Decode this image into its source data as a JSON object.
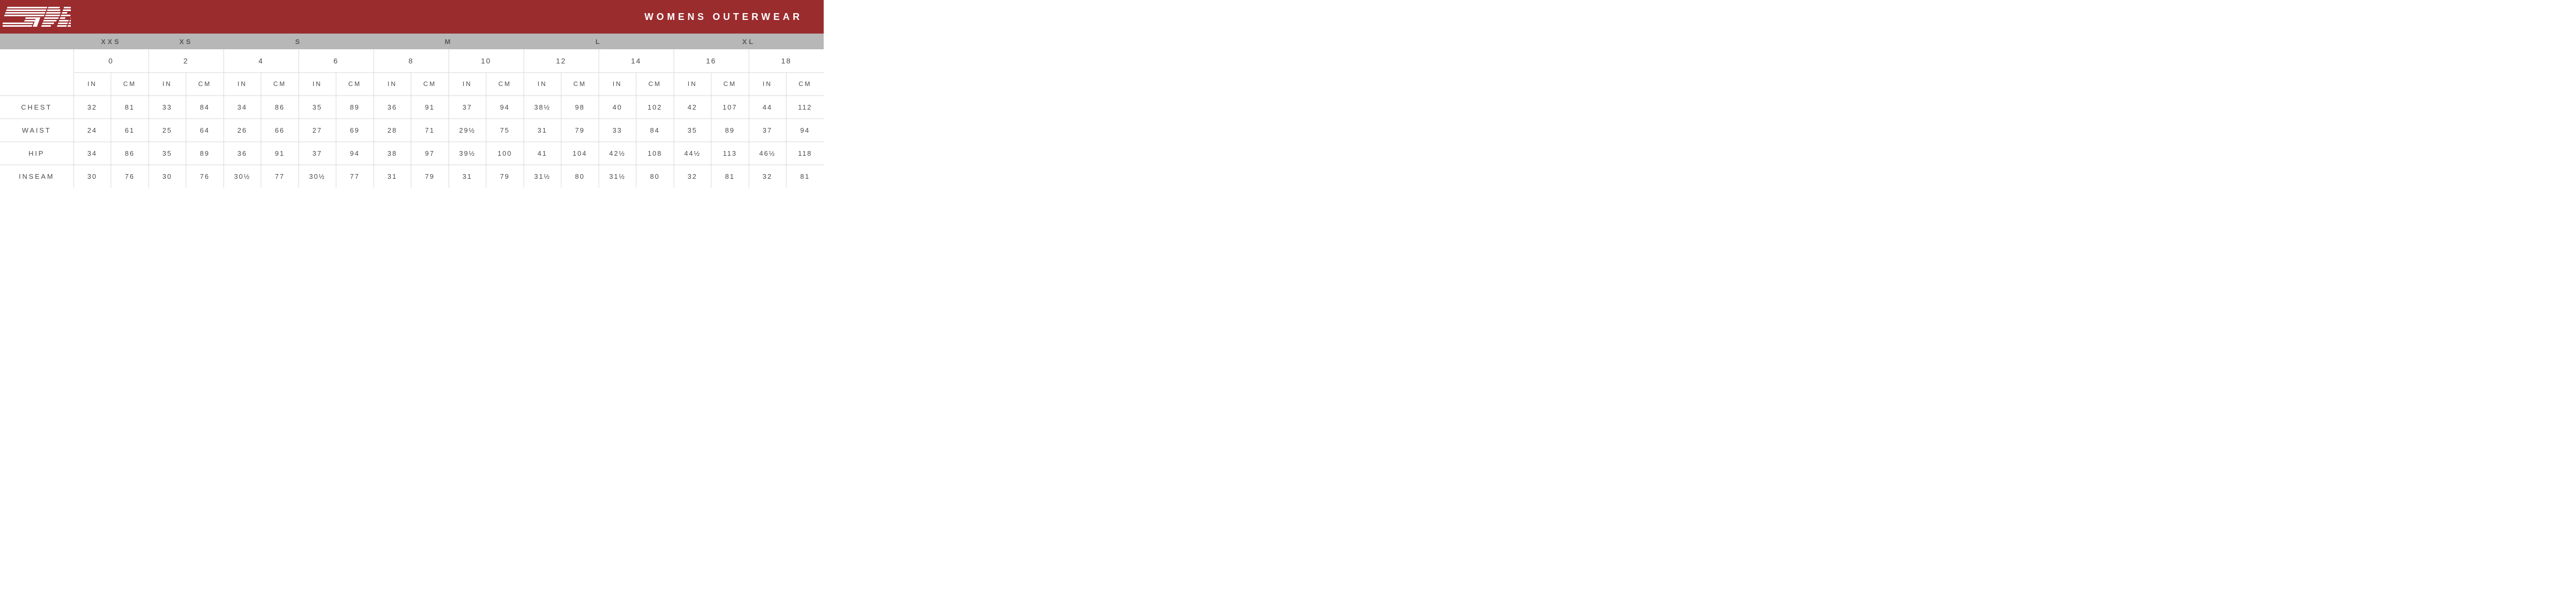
{
  "colors": {
    "header_bg": "#9b2c2e",
    "size_row_bg": "#b7b7b7",
    "border": "#d9d9d9",
    "text_dark": "#4a4a4a",
    "text_header": "#5a5a5a",
    "logo_fill": "#ffffff"
  },
  "header": {
    "title": "WOMENS OUTERWEAR"
  },
  "sizes": [
    {
      "label": "XXS",
      "span": 1
    },
    {
      "label": "XS",
      "span": 1
    },
    {
      "label": "S",
      "span": 2
    },
    {
      "label": "M",
      "span": 2
    },
    {
      "label": "L",
      "span": 2
    },
    {
      "label": "XL",
      "span": 2
    }
  ],
  "numeric_sizes": [
    "0",
    "2",
    "4",
    "6",
    "8",
    "10",
    "12",
    "14",
    "16",
    "18"
  ],
  "units": [
    "IN",
    "CM"
  ],
  "rows": [
    {
      "label": "CHEST",
      "values": [
        "32",
        "81",
        "33",
        "84",
        "34",
        "86",
        "35",
        "89",
        "36",
        "91",
        "37",
        "94",
        "38½",
        "98",
        "40",
        "102",
        "42",
        "107",
        "44",
        "112"
      ]
    },
    {
      "label": "WAIST",
      "values": [
        "24",
        "61",
        "25",
        "64",
        "26",
        "66",
        "27",
        "69",
        "28",
        "71",
        "29½",
        "75",
        "31",
        "79",
        "33",
        "84",
        "35",
        "89",
        "37",
        "94"
      ]
    },
    {
      "label": "HIP",
      "values": [
        "34",
        "86",
        "35",
        "89",
        "36",
        "91",
        "37",
        "94",
        "38",
        "97",
        "39½",
        "100",
        "41",
        "104",
        "42½",
        "108",
        "44½",
        "113",
        "46½",
        "118"
      ]
    },
    {
      "label": "INSEAM",
      "values": [
        "30",
        "76",
        "30",
        "76",
        "30½",
        "77",
        "30½",
        "77",
        "31",
        "79",
        "31",
        "79",
        "31½",
        "80",
        "31½",
        "80",
        "32",
        "81",
        "32",
        "81"
      ]
    }
  ]
}
